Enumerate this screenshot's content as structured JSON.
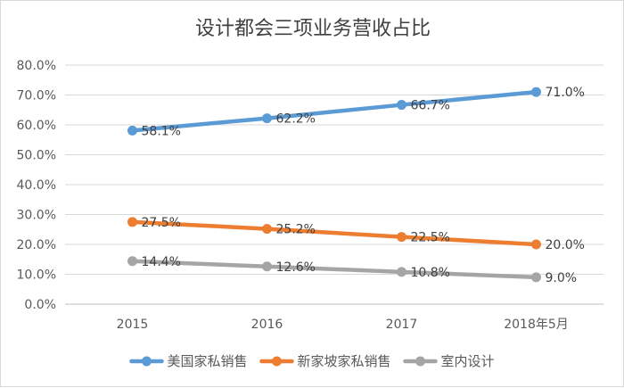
{
  "chart_data": {
    "type": "line",
    "title": "设计都会三项业务营收占比",
    "categories": [
      "2015",
      "2016",
      "2017",
      "2018年5月"
    ],
    "ylim": [
      0,
      80
    ],
    "yticks": [
      0,
      10,
      20,
      30,
      40,
      50,
      60,
      70,
      80
    ],
    "ytick_labels": [
      "0.0%",
      "10.0%",
      "20.0%",
      "30.0%",
      "40.0%",
      "50.0%",
      "60.0%",
      "70.0%",
      "80.0%"
    ],
    "xlabel": "",
    "ylabel": "",
    "grid": true,
    "legend_position": "bottom",
    "series": [
      {
        "name": "美国家私销售",
        "color": "#5B9BD5",
        "values": [
          58.1,
          62.2,
          66.7,
          71.0
        ],
        "labels": [
          "58.1%",
          "62.2%",
          "66.7%",
          "71.0%"
        ]
      },
      {
        "name": "新家坡家私销售",
        "color": "#ED7D31",
        "values": [
          27.5,
          25.2,
          22.5,
          20.0
        ],
        "labels": [
          "27.5%",
          "25.2%",
          "22.5%",
          "20.0%"
        ]
      },
      {
        "name": "室内设计",
        "color": "#A5A5A5",
        "values": [
          14.4,
          12.6,
          10.8,
          9.0
        ],
        "labels": [
          "14.4%",
          "12.6%",
          "10.8%",
          "9.0%"
        ]
      }
    ]
  }
}
